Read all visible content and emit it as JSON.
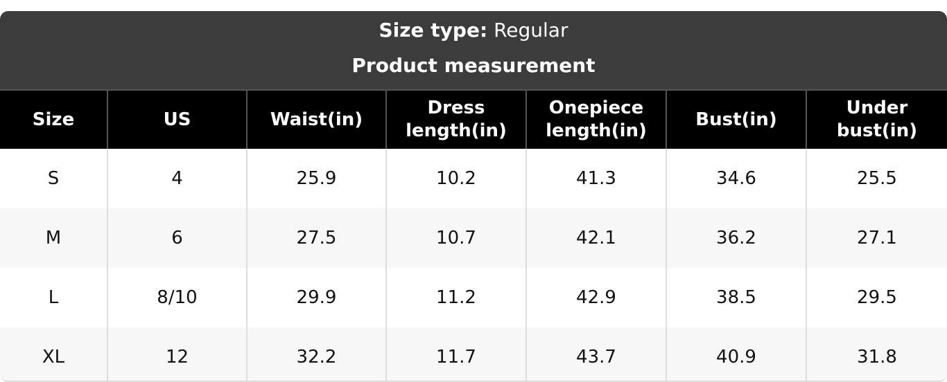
{
  "header": {
    "size_type_label": "Size type:",
    "size_type_value": "Regular",
    "title": "Product measurement"
  },
  "table": {
    "columns": [
      "Size",
      "US",
      "Waist(in)",
      "Dress length(in)",
      "Onepiece length(in)",
      "Bust(in)",
      "Under bust(in)"
    ],
    "rows": [
      [
        "S",
        "4",
        "25.9",
        "10.2",
        "41.3",
        "34.6",
        "25.5"
      ],
      [
        "M",
        "6",
        "27.5",
        "10.7",
        "42.1",
        "36.2",
        "27.1"
      ],
      [
        "L",
        "8/10",
        "29.9",
        "11.2",
        "42.9",
        "38.5",
        "29.5"
      ],
      [
        "XL",
        "12",
        "32.2",
        "11.7",
        "43.7",
        "40.9",
        "31.8"
      ]
    ]
  }
}
